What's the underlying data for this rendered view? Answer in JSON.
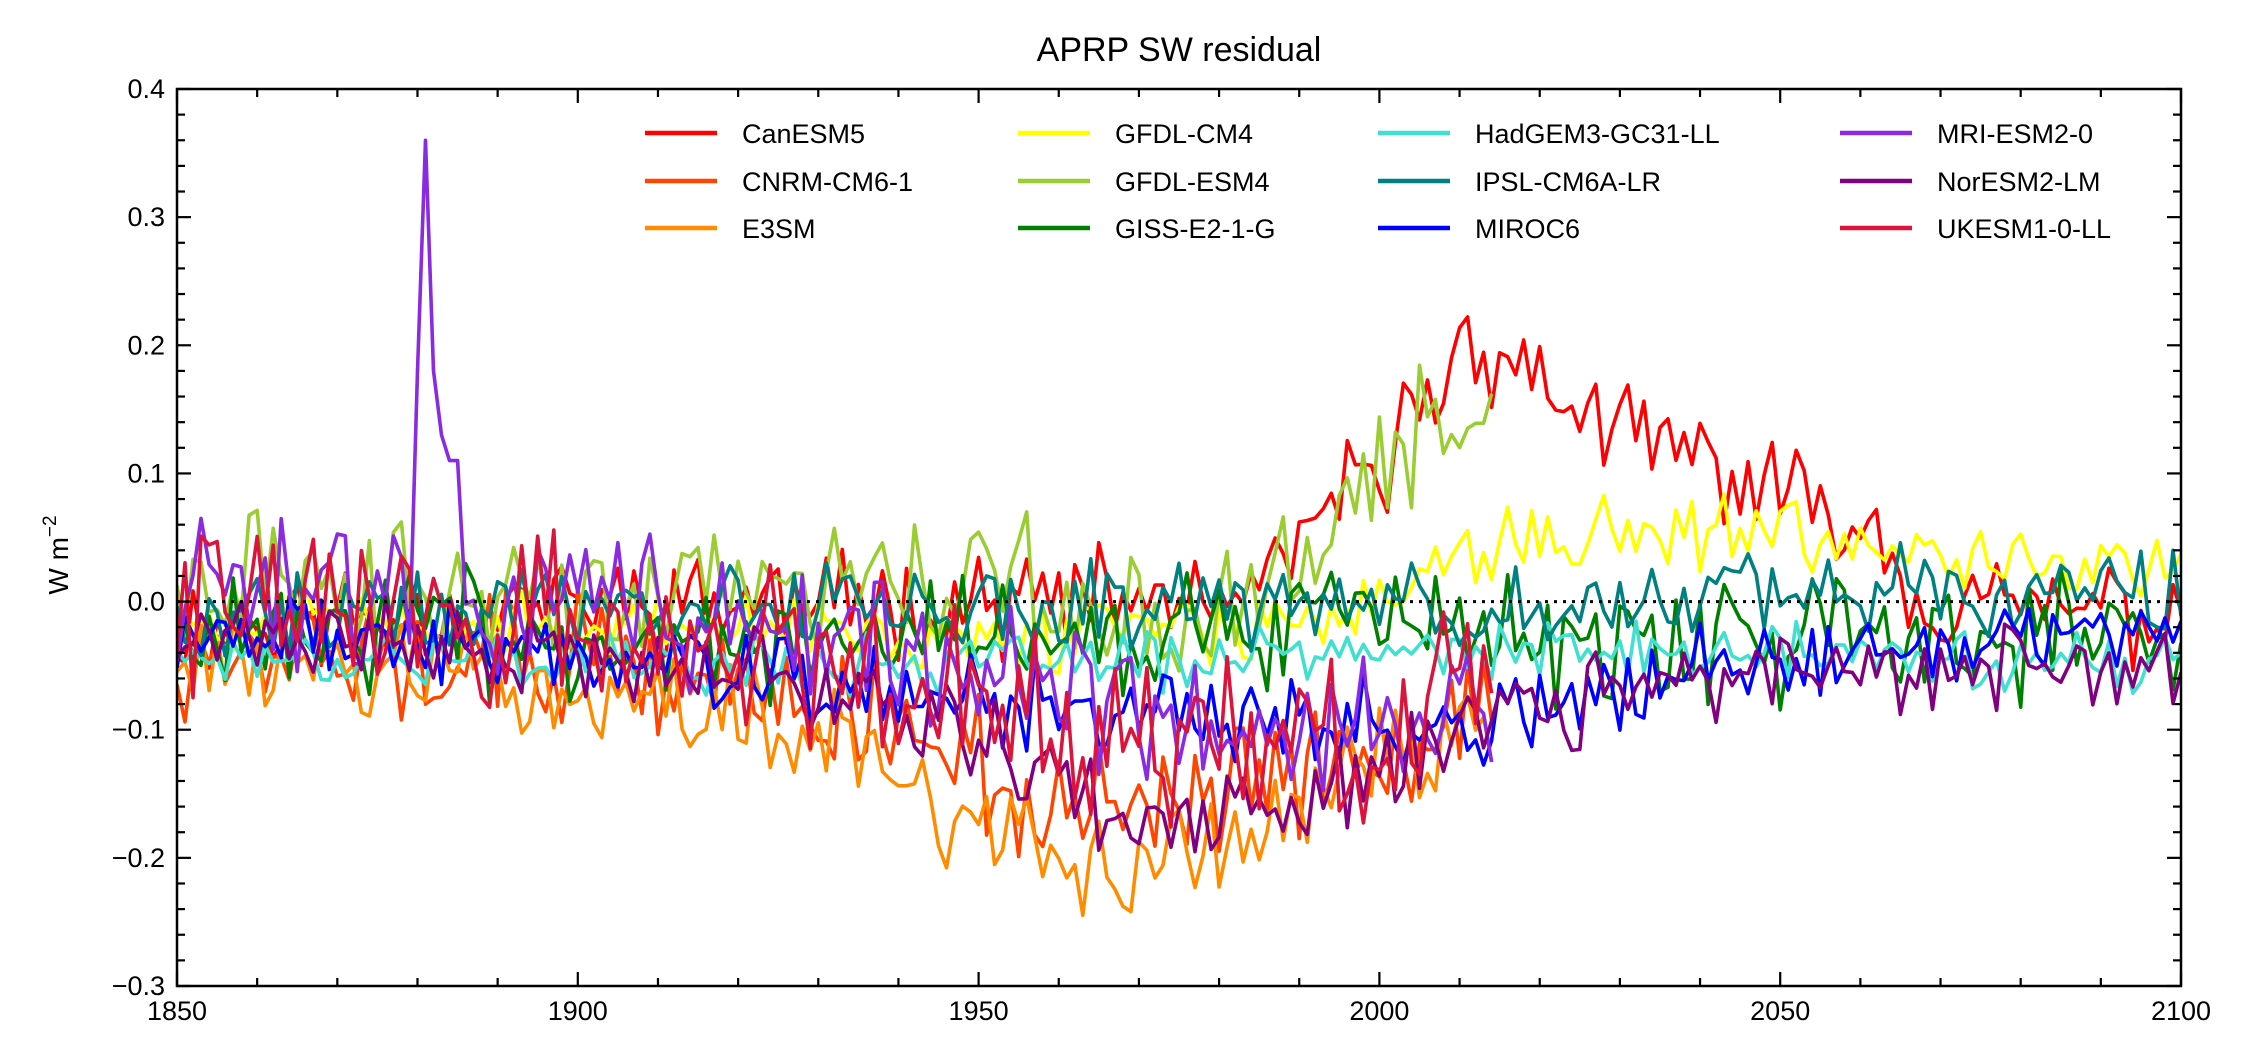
{
  "chart_data": {
    "type": "line",
    "title": "APRP SW residual",
    "xlabel": "",
    "ylabel": "W m",
    "ylabel_sup": "−2",
    "xlim": [
      1850,
      2100
    ],
    "ylim": [
      -0.3,
      0.4
    ],
    "x_ticks": [
      1850,
      1900,
      1950,
      2000,
      2050,
      2100
    ],
    "x_tick_labels": [
      "1850",
      "1900",
      "1950",
      "2000",
      "2050",
      "2100"
    ],
    "y_ticks": [
      -0.3,
      -0.2,
      -0.1,
      0.0,
      0.1,
      0.2,
      0.3,
      0.4
    ],
    "y_tick_labels": [
      "−0.3",
      "−0.2",
      "−0.1",
      "0.0",
      "0.1",
      "0.2",
      "0.3",
      "0.4"
    ],
    "grid": false,
    "legend_position": "top-right",
    "reference_line": {
      "y": 0.0,
      "style": "dotted",
      "color": "#000000"
    },
    "series": [
      {
        "name": "CanESM5",
        "color": "#ff0000",
        "x_range": [
          1850,
          2100
        ],
        "anchors": [
          [
            1850,
            -0.02
          ],
          [
            1900,
            0.0
          ],
          [
            1940,
            0.0
          ],
          [
            1985,
            0.0
          ],
          [
            1993,
            0.07
          ],
          [
            2000,
            0.1
          ],
          [
            2006,
            0.17
          ],
          [
            2013,
            0.2
          ],
          [
            2020,
            0.17
          ],
          [
            2030,
            0.13
          ],
          [
            2040,
            0.11
          ],
          [
            2050,
            0.08
          ],
          [
            2060,
            0.07
          ],
          [
            2068,
            0.0
          ],
          [
            2100,
            -0.01
          ]
        ],
        "noise": 0.035,
        "seed": 11
      },
      {
        "name": "CNRM-CM6-1",
        "color": "#ff4500",
        "x_range": [
          1850,
          2014
        ],
        "anchors": [
          [
            1850,
            -0.04
          ],
          [
            1900,
            -0.05
          ],
          [
            1940,
            -0.09
          ],
          [
            1960,
            -0.17
          ],
          [
            1980,
            -0.15
          ],
          [
            2000,
            -0.12
          ],
          [
            2014,
            -0.08
          ]
        ],
        "noise": 0.045,
        "seed": 12
      },
      {
        "name": "E3SM",
        "color": "#ff8c00",
        "x_range": [
          1850,
          2014
        ],
        "anchors": [
          [
            1850,
            -0.04
          ],
          [
            1900,
            -0.07
          ],
          [
            1930,
            -0.1
          ],
          [
            1950,
            -0.18
          ],
          [
            1965,
            -0.21
          ],
          [
            1980,
            -0.19
          ],
          [
            2000,
            -0.12
          ],
          [
            2014,
            -0.1
          ]
        ],
        "noise": 0.035,
        "seed": 13
      },
      {
        "name": "GFDL-CM4",
        "color": "#ffff00",
        "x_range": [
          1850,
          2100
        ],
        "anchors": [
          [
            1850,
            -0.01
          ],
          [
            1960,
            -0.03
          ],
          [
            2000,
            -0.01
          ],
          [
            2015,
            0.05
          ],
          [
            2030,
            0.06
          ],
          [
            2050,
            0.05
          ],
          [
            2070,
            0.03
          ],
          [
            2100,
            0.03
          ]
        ],
        "noise": 0.025,
        "seed": 14
      },
      {
        "name": "GFDL-ESM4",
        "color": "#9acd32",
        "x_range": [
          1850,
          2014
        ],
        "anchors": [
          [
            1850,
            0.02
          ],
          [
            1900,
            0.0
          ],
          [
            1950,
            0.02
          ],
          [
            1980,
            -0.02
          ],
          [
            1995,
            0.05
          ],
          [
            2005,
            0.14
          ],
          [
            2014,
            0.17
          ]
        ],
        "noise": 0.045,
        "seed": 15
      },
      {
        "name": "GISS-E2-1-G",
        "color": "#008000",
        "x_range": [
          1850,
          2100
        ],
        "anchors": [
          [
            1850,
            -0.02
          ],
          [
            1900,
            -0.03
          ],
          [
            1950,
            -0.02
          ],
          [
            2000,
            -0.02
          ],
          [
            2050,
            -0.03
          ],
          [
            2100,
            -0.03
          ]
        ],
        "noise": 0.045,
        "seed": 16
      },
      {
        "name": "HadGEM3-GC31-LL",
        "color": "#40e0d0",
        "x_range": [
          1850,
          2100
        ],
        "anchors": [
          [
            1850,
            -0.04
          ],
          [
            1950,
            -0.05
          ],
          [
            2000,
            -0.04
          ],
          [
            2050,
            -0.04
          ],
          [
            2100,
            -0.05
          ]
        ],
        "noise": 0.02,
        "seed": 17
      },
      {
        "name": "IPSL-CM6A-LR",
        "color": "#008080",
        "x_range": [
          1850,
          2100
        ],
        "anchors": [
          [
            1850,
            -0.01
          ],
          [
            1950,
            0.0
          ],
          [
            2000,
            -0.01
          ],
          [
            2050,
            0.01
          ],
          [
            2100,
            0.0
          ]
        ],
        "noise": 0.03,
        "seed": 18
      },
      {
        "name": "MIROC6",
        "color": "#0000ff",
        "x_range": [
          1850,
          2100
        ],
        "anchors": [
          [
            1850,
            -0.02
          ],
          [
            1900,
            -0.04
          ],
          [
            1950,
            -0.08
          ],
          [
            1990,
            -0.09
          ],
          [
            2010,
            -0.1
          ],
          [
            2030,
            -0.07
          ],
          [
            2060,
            -0.03
          ],
          [
            2100,
            -0.02
          ]
        ],
        "noise": 0.03,
        "seed": 19
      },
      {
        "name": "MRI-ESM2-0",
        "color": "#8a2be2",
        "x_range": [
          1850,
          2014
        ],
        "anchors": [
          [
            1850,
            0.0
          ],
          [
            1900,
            0.0
          ],
          [
            1930,
            -0.02
          ],
          [
            1960,
            -0.08
          ],
          [
            1990,
            -0.1
          ],
          [
            2014,
            -0.08
          ]
        ],
        "noise": 0.05,
        "seed": 20,
        "spikes": [
          [
            1880,
            0.18
          ],
          [
            1881,
            0.36
          ],
          [
            1882,
            0.18
          ],
          [
            1883,
            0.13
          ],
          [
            1884,
            0.11
          ],
          [
            1885,
            0.11
          ]
        ]
      },
      {
        "name": "NorESM2-LM",
        "color": "#800080",
        "x_range": [
          1850,
          2100
        ],
        "anchors": [
          [
            1850,
            -0.02
          ],
          [
            1920,
            -0.05
          ],
          [
            1950,
            -0.1
          ],
          [
            1970,
            -0.18
          ],
          [
            1990,
            -0.16
          ],
          [
            2010,
            -0.1
          ],
          [
            2050,
            -0.05
          ],
          [
            2100,
            -0.05
          ]
        ],
        "noise": 0.03,
        "seed": 21
      },
      {
        "name": "UKESM1-0-LL",
        "color": "#dc143c",
        "x_range": [
          1850,
          2014
        ],
        "anchors": [
          [
            1850,
            0.0
          ],
          [
            1900,
            -0.02
          ],
          [
            1940,
            -0.05
          ],
          [
            1970,
            -0.1
          ],
          [
            2000,
            -0.12
          ],
          [
            2014,
            -0.05
          ]
        ],
        "noise": 0.06,
        "seed": 22
      }
    ]
  }
}
